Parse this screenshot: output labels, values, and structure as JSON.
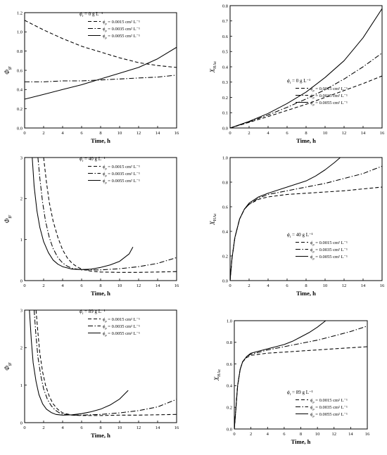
{
  "chart_data": [
    {
      "type": "line",
      "ylabel": "Φgr",
      "xlabel": "Time, h",
      "xlim": [
        0,
        16
      ],
      "ylim": [
        0.0,
        1.2
      ],
      "xticks": [
        "0",
        "2",
        "4",
        "6",
        "8",
        "10",
        "12",
        "14",
        "16"
      ],
      "yticks": [
        "0.0",
        "0.2",
        "0.4",
        "0.6",
        "0.8",
        "1.0",
        "1.2"
      ],
      "legend_position": "top-right",
      "legend_title": "ϕr = 0 g L⁻¹",
      "series": [
        {
          "name": "ϕp = 0.0015 cm² L⁻¹",
          "style": "dashed",
          "x": [
            0,
            2,
            4,
            6,
            8,
            10,
            12,
            14,
            16
          ],
          "y": [
            1.12,
            1.02,
            0.93,
            0.85,
            0.79,
            0.73,
            0.68,
            0.65,
            0.63
          ]
        },
        {
          "name": "ϕp = 0.0035 cm² L⁻¹",
          "style": "dashdot",
          "x": [
            0,
            2,
            4,
            6,
            8,
            10,
            12,
            14,
            16
          ],
          "y": [
            0.48,
            0.48,
            0.49,
            0.49,
            0.5,
            0.51,
            0.52,
            0.53,
            0.55
          ]
        },
        {
          "name": "ϕp = 0.0055 cm² L⁻¹",
          "style": "solid",
          "x": [
            0,
            2,
            4,
            6,
            8,
            10,
            12,
            14,
            16
          ],
          "y": [
            0.3,
            0.35,
            0.4,
            0.45,
            0.51,
            0.57,
            0.63,
            0.72,
            0.84
          ]
        }
      ]
    },
    {
      "type": "line",
      "ylabel": "XHAc",
      "xlabel": "Time, h",
      "xlim": [
        0,
        16
      ],
      "ylim": [
        0.0,
        0.8
      ],
      "xticks": [
        "0",
        "2",
        "4",
        "6",
        "8",
        "10",
        "12",
        "14",
        "16"
      ],
      "yticks": [
        "0.0",
        "0.1",
        "0.2",
        "0.3",
        "0.4",
        "0.5",
        "0.6",
        "0.7",
        "0.8"
      ],
      "legend_position": "bottom-right",
      "legend_title": "ϕr = 0 g L⁻¹",
      "series": [
        {
          "name": "ϕp = 0.0015 cm² L⁻¹",
          "style": "dashed",
          "x": [
            0,
            2,
            4,
            6,
            8,
            10,
            12,
            14,
            16
          ],
          "y": [
            0,
            0.037,
            0.075,
            0.115,
            0.155,
            0.2,
            0.245,
            0.29,
            0.34
          ]
        },
        {
          "name": "ϕp = 0.0035 cm² L⁻¹",
          "style": "dashdot",
          "x": [
            0,
            2,
            4,
            6,
            8,
            10,
            12,
            14,
            16
          ],
          "y": [
            0,
            0.04,
            0.085,
            0.135,
            0.19,
            0.25,
            0.32,
            0.4,
            0.49
          ]
        },
        {
          "name": "ϕp = 0.0055 cm² L⁻¹",
          "style": "solid",
          "x": [
            0,
            2,
            4,
            6,
            8,
            10,
            12,
            14,
            16
          ],
          "y": [
            0,
            0.043,
            0.095,
            0.16,
            0.235,
            0.33,
            0.44,
            0.59,
            0.78
          ]
        }
      ]
    },
    {
      "type": "line",
      "ylabel": "Φgr",
      "xlabel": "Time, h",
      "xlim": [
        0,
        16
      ],
      "ylim": [
        0,
        3
      ],
      "xticks": [
        "0",
        "2",
        "4",
        "6",
        "8",
        "10",
        "12",
        "14",
        "16"
      ],
      "yticks": [
        "0",
        "1",
        "2",
        "3"
      ],
      "legend_position": "top-right",
      "legend_title": "ϕr = 40 g L⁻¹",
      "series": [
        {
          "name": "ϕp = 0.0015 cm² L⁻¹",
          "style": "dashed",
          "x": [
            2.0,
            2.3,
            2.6,
            3,
            3.5,
            4,
            4.5,
            5,
            5.5,
            6,
            7,
            8,
            10,
            12,
            14,
            16
          ],
          "y": [
            3.0,
            2.4,
            1.9,
            1.45,
            1.05,
            0.75,
            0.55,
            0.42,
            0.34,
            0.28,
            0.23,
            0.21,
            0.2,
            0.2,
            0.21,
            0.22
          ]
        },
        {
          "name": "ϕp = 0.0035 cm² L⁻¹",
          "style": "dashdot",
          "x": [
            1.4,
            1.6,
            1.9,
            2.2,
            2.6,
            3,
            3.5,
            4,
            4.5,
            5,
            6,
            8,
            10,
            12,
            14,
            16
          ],
          "y": [
            3.0,
            2.5,
            1.9,
            1.45,
            1.05,
            0.78,
            0.56,
            0.43,
            0.35,
            0.3,
            0.26,
            0.26,
            0.29,
            0.34,
            0.42,
            0.56
          ]
        },
        {
          "name": "ϕp = 0.0055 cm² L⁻¹",
          "style": "solid",
          "x": [
            0.8,
            1.0,
            1.3,
            1.6,
            2.0,
            2.5,
            3,
            3.5,
            4,
            5,
            6,
            7,
            8,
            9,
            10,
            11,
            11.4
          ],
          "y": [
            3.0,
            2.3,
            1.7,
            1.3,
            0.95,
            0.68,
            0.5,
            0.4,
            0.34,
            0.28,
            0.27,
            0.28,
            0.32,
            0.38,
            0.47,
            0.65,
            0.82
          ]
        }
      ]
    },
    {
      "type": "line",
      "ylabel": "XHAc",
      "xlabel": "Time, h",
      "xlim": [
        0,
        16
      ],
      "ylim": [
        0.0,
        1.0
      ],
      "xticks": [
        "0",
        "2",
        "4",
        "6",
        "8",
        "10",
        "12",
        "14",
        "16"
      ],
      "yticks": [
        "0.0",
        "0.2",
        "0.4",
        "0.6",
        "0.8",
        "1.0"
      ],
      "legend_position": "bottom-right",
      "legend_title": "ϕr = 40 g L⁻¹",
      "series": [
        {
          "name": "ϕp = 0.0015 cm² L⁻¹",
          "style": "dashed",
          "x": [
            0,
            0.2,
            0.5,
            1,
            1.5,
            2,
            3,
            4,
            6,
            8,
            10,
            12,
            14,
            16
          ],
          "y": [
            0,
            0.18,
            0.35,
            0.5,
            0.58,
            0.62,
            0.66,
            0.68,
            0.7,
            0.71,
            0.72,
            0.73,
            0.745,
            0.76
          ]
        },
        {
          "name": "ϕp = 0.0035 cm² L⁻¹",
          "style": "dashdot",
          "x": [
            0,
            0.2,
            0.5,
            1,
            1.5,
            2,
            3,
            4,
            6,
            8,
            10,
            12,
            14,
            16
          ],
          "y": [
            0,
            0.18,
            0.35,
            0.5,
            0.58,
            0.62,
            0.67,
            0.7,
            0.73,
            0.76,
            0.79,
            0.83,
            0.87,
            0.93
          ]
        },
        {
          "name": "ϕp = 0.0055 cm² L⁻¹",
          "style": "solid",
          "x": [
            0,
            0.2,
            0.5,
            1,
            1.5,
            2,
            3,
            4,
            6,
            8,
            9,
            10,
            11,
            11.6
          ],
          "y": [
            0,
            0.18,
            0.35,
            0.5,
            0.58,
            0.63,
            0.68,
            0.71,
            0.76,
            0.81,
            0.85,
            0.9,
            0.96,
            1.0
          ]
        }
      ]
    },
    {
      "type": "line",
      "ylabel": "Φgr",
      "xlabel": "Time, h",
      "xlim": [
        0,
        16
      ],
      "ylim": [
        0,
        3
      ],
      "xticks": [
        "0",
        "2",
        "4",
        "6",
        "8",
        "10",
        "12",
        "14",
        "16"
      ],
      "yticks": [
        "0",
        "1",
        "2",
        "3"
      ],
      "legend_position": "top-right",
      "legend_title": "ϕr = 89 g L⁻¹",
      "series": [
        {
          "name": "ϕp = 0.0015 cm² L⁻¹",
          "style": "dashed",
          "x": [
            1.2,
            1.4,
            1.6,
            1.9,
            2.2,
            2.6,
            3,
            3.5,
            4,
            5,
            6,
            8,
            10,
            12,
            14,
            16
          ],
          "y": [
            3.0,
            2.4,
            1.85,
            1.35,
            1.0,
            0.7,
            0.5,
            0.35,
            0.26,
            0.2,
            0.19,
            0.19,
            0.2,
            0.2,
            0.21,
            0.22
          ]
        },
        {
          "name": "ϕp = 0.0035 cm² L⁻¹",
          "style": "dashdot",
          "x": [
            1.0,
            1.2,
            1.4,
            1.7,
            2.0,
            2.4,
            2.8,
            3.2,
            3.6,
            4,
            5,
            6,
            8,
            10,
            12,
            14,
            16
          ],
          "y": [
            3.0,
            2.3,
            1.75,
            1.25,
            0.9,
            0.62,
            0.45,
            0.34,
            0.27,
            0.23,
            0.2,
            0.2,
            0.22,
            0.26,
            0.32,
            0.42,
            0.62
          ]
        },
        {
          "name": "ϕp = 0.0055 cm² L⁻¹",
          "style": "solid",
          "x": [
            0.5,
            0.7,
            0.9,
            1.2,
            1.5,
            1.9,
            2.3,
            2.8,
            3.3,
            4,
            5,
            6,
            7,
            8,
            9,
            10,
            10.9
          ],
          "y": [
            3.0,
            2.2,
            1.6,
            1.1,
            0.75,
            0.5,
            0.36,
            0.27,
            0.22,
            0.2,
            0.21,
            0.24,
            0.29,
            0.36,
            0.47,
            0.63,
            0.86
          ]
        }
      ]
    },
    {
      "type": "line",
      "ylabel": "XHAc",
      "xlabel": "Time, h",
      "xlim": [
        0,
        16
      ],
      "ylim": [
        0.0,
        1.0
      ],
      "xticks": [
        "0",
        "2",
        "4",
        "6",
        "8",
        "10",
        "12",
        "14",
        "16"
      ],
      "yticks": [
        "0.0",
        "0.2",
        "0.4",
        "0.6",
        "0.8",
        "1.0"
      ],
      "legend_position": "bottom-right",
      "legend_title": "ϕr = 89 g L⁻¹",
      "series": [
        {
          "name": "ϕp = 0.0015 cm² L⁻¹",
          "style": "dashed",
          "x": [
            0,
            0.2,
            0.4,
            0.7,
            1,
            1.5,
            2,
            3,
            4,
            6,
            8,
            10,
            12,
            14,
            16
          ],
          "y": [
            0,
            0.2,
            0.4,
            0.55,
            0.62,
            0.66,
            0.68,
            0.69,
            0.7,
            0.71,
            0.72,
            0.73,
            0.74,
            0.75,
            0.76
          ]
        },
        {
          "name": "ϕp = 0.0035 cm² L⁻¹",
          "style": "dashdot",
          "x": [
            0,
            0.2,
            0.4,
            0.7,
            1,
            1.5,
            2,
            3,
            4,
            6,
            8,
            10,
            12,
            14,
            16
          ],
          "y": [
            0,
            0.2,
            0.4,
            0.55,
            0.62,
            0.67,
            0.69,
            0.71,
            0.73,
            0.76,
            0.79,
            0.82,
            0.86,
            0.9,
            0.95
          ]
        },
        {
          "name": "ϕp = 0.0055 cm² L⁻¹",
          "style": "solid",
          "x": [
            0,
            0.2,
            0.4,
            0.7,
            1,
            1.5,
            2,
            3,
            4,
            5,
            6,
            7,
            8,
            9,
            10,
            11
          ],
          "y": [
            0,
            0.2,
            0.4,
            0.55,
            0.62,
            0.67,
            0.7,
            0.72,
            0.74,
            0.76,
            0.78,
            0.81,
            0.85,
            0.89,
            0.94,
            1.0
          ]
        }
      ]
    }
  ]
}
